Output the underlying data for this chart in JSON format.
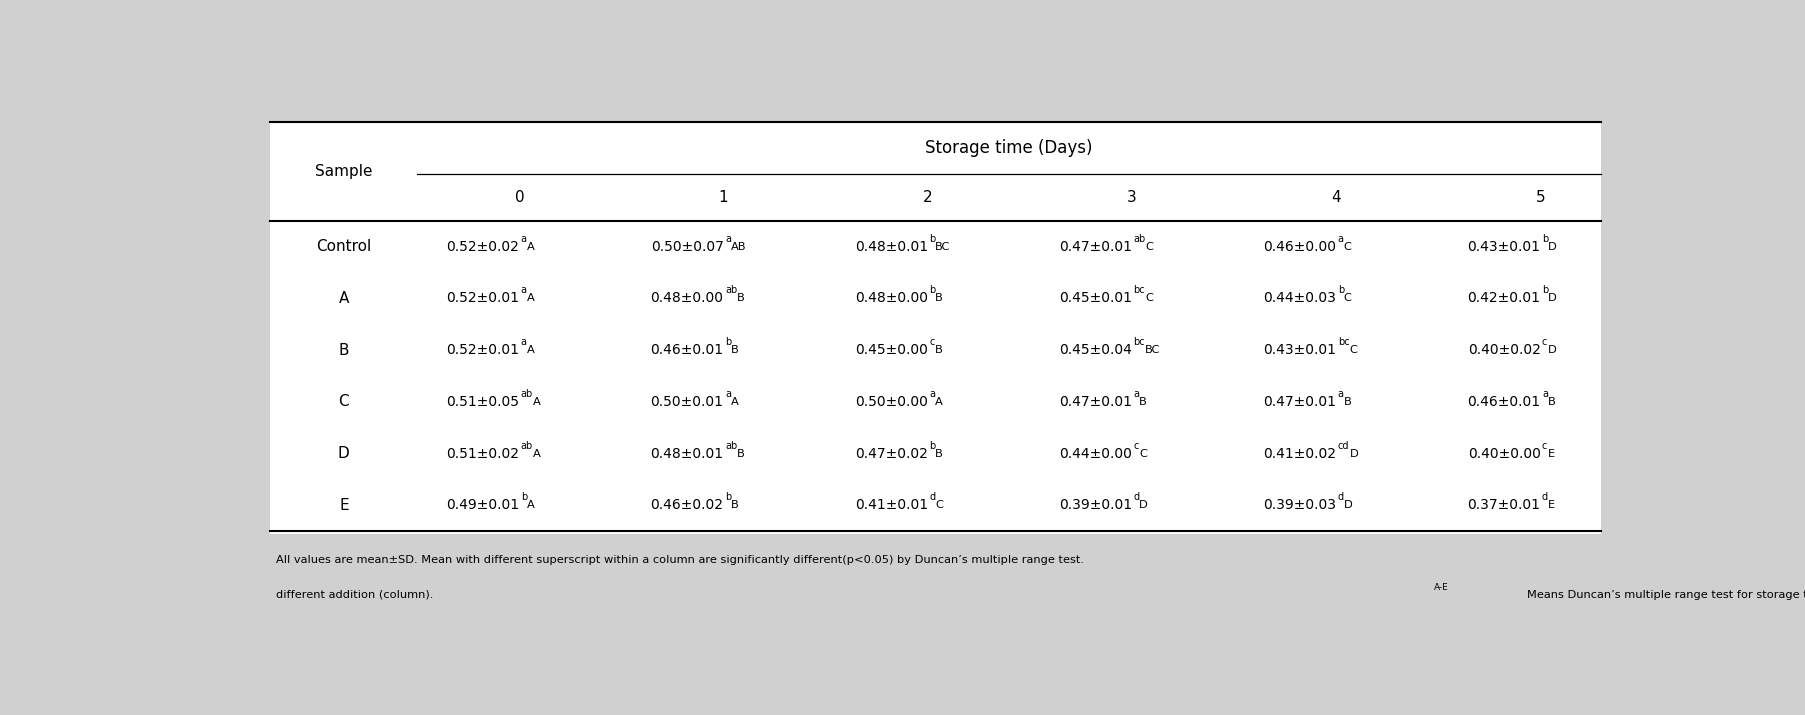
{
  "header_group": "Storage time (Days)",
  "col_header": [
    "Sample",
    "0",
    "1",
    "2",
    "3",
    "4",
    "5"
  ],
  "rows": [
    {
      "sample": "Control",
      "values": [
        {
          "main": "0.52±0.02",
          "sup": "a",
          "sub": "A"
        },
        {
          "main": "0.50±0.07",
          "sup": "a",
          "sub": "AB"
        },
        {
          "main": "0.48±0.01",
          "sup": "b",
          "sub": "BC"
        },
        {
          "main": "0.47±0.01",
          "sup": "ab",
          "sub": "C"
        },
        {
          "main": "0.46±0.00",
          "sup": "a",
          "sub": "C"
        },
        {
          "main": "0.43±0.01",
          "sup": "b",
          "sub": "D"
        }
      ]
    },
    {
      "sample": "A",
      "values": [
        {
          "main": "0.52±0.01",
          "sup": "a",
          "sub": "A"
        },
        {
          "main": "0.48±0.00",
          "sup": "ab",
          "sub": "B"
        },
        {
          "main": "0.48±0.00",
          "sup": "b",
          "sub": "B"
        },
        {
          "main": "0.45±0.01",
          "sup": "bc",
          "sub": "C"
        },
        {
          "main": "0.44±0.03",
          "sup": "b",
          "sub": "C"
        },
        {
          "main": "0.42±0.01",
          "sup": "b",
          "sub": "D"
        }
      ]
    },
    {
      "sample": "B",
      "values": [
        {
          "main": "0.52±0.01",
          "sup": "a",
          "sub": "A"
        },
        {
          "main": "0.46±0.01",
          "sup": "b",
          "sub": "B"
        },
        {
          "main": "0.45±0.00",
          "sup": "c",
          "sub": "B"
        },
        {
          "main": "0.45±0.04",
          "sup": "bc",
          "sub": "BC"
        },
        {
          "main": "0.43±0.01",
          "sup": "bc",
          "sub": "C"
        },
        {
          "main": "0.40±0.02",
          "sup": "c",
          "sub": "D"
        }
      ]
    },
    {
      "sample": "C",
      "values": [
        {
          "main": "0.51±0.05",
          "sup": "ab",
          "sub": "A"
        },
        {
          "main": "0.50±0.01",
          "sup": "a",
          "sub": "A"
        },
        {
          "main": "0.50±0.00",
          "sup": "a",
          "sub": "A"
        },
        {
          "main": "0.47±0.01",
          "sup": "a",
          "sub": "B"
        },
        {
          "main": "0.47±0.01",
          "sup": "a",
          "sub": "B"
        },
        {
          "main": "0.46±0.01",
          "sup": "a",
          "sub": "B"
        }
      ]
    },
    {
      "sample": "D",
      "values": [
        {
          "main": "0.51±0.02",
          "sup": "ab",
          "sub": "A"
        },
        {
          "main": "0.48±0.01",
          "sup": "ab",
          "sub": "B"
        },
        {
          "main": "0.47±0.02",
          "sup": "b",
          "sub": "B"
        },
        {
          "main": "0.44±0.00",
          "sup": "c",
          "sub": "C"
        },
        {
          "main": "0.41±0.02",
          "sup": "cd",
          "sub": "D"
        },
        {
          "main": "0.40±0.00",
          "sup": "c",
          "sub": "E"
        }
      ]
    },
    {
      "sample": "E",
      "values": [
        {
          "main": "0.49±0.01",
          "sup": "b",
          "sub": "A"
        },
        {
          "main": "0.46±0.02",
          "sup": "b",
          "sub": "B"
        },
        {
          "main": "0.41±0.01",
          "sup": "d",
          "sub": "C"
        },
        {
          "main": "0.39±0.01",
          "sup": "d",
          "sub": "D"
        },
        {
          "main": "0.39±0.03",
          "sup": "d",
          "sub": "D"
        },
        {
          "main": "0.37±0.01",
          "sup": "d",
          "sub": "E"
        }
      ]
    }
  ],
  "footnote_line1": "All values are mean±SD. Mean with different superscript within a column are significantly different(p<0.05) by Duncan's multiple range test. a-dMeans Duncan's multiple range test for",
  "footnote_line2": "different addition (column). A-EMeans Duncan's multiple range test for storage time (row).",
  "bg_color": "#d0d0d0",
  "table_bg": "#ffffff"
}
